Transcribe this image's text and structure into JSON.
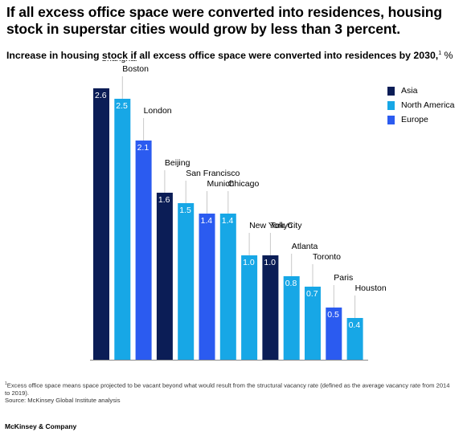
{
  "headline": "If all excess office space were converted into residences, housing stock in superstar cities would grow by less than 3 percent.",
  "subtitle": {
    "text": "Increase in housing stock if all excess office space were converted into residences by 2030,",
    "marker": "1",
    "unit": " %"
  },
  "legend": [
    {
      "label": "Asia",
      "color": "#0b1d56"
    },
    {
      "label": "North America",
      "color": "#17a7e6"
    },
    {
      "label": "Europe",
      "color": "#2b5bf0"
    }
  ],
  "chart_data": {
    "type": "bar",
    "categories": [
      "Shanghai",
      "Boston",
      "London",
      "Beijing",
      "San Francisco",
      "Munich",
      "Chicago",
      "New York City",
      "Tokyo",
      "Atlanta",
      "Toronto",
      "Paris",
      "Houston"
    ],
    "values": [
      2.6,
      2.5,
      2.1,
      1.6,
      1.5,
      1.4,
      1.4,
      1.0,
      1.0,
      0.8,
      0.7,
      0.5,
      0.4
    ],
    "value_labels": [
      "2.6",
      "2.5",
      "2.1",
      "1.6",
      "1.5",
      "1.4",
      "1.4",
      "1.0",
      "1.0",
      "0.8",
      "0.7",
      "0.5",
      "0.4"
    ],
    "regions": [
      "Asia",
      "North America",
      "Europe",
      "Asia",
      "North America",
      "Europe",
      "North America",
      "North America",
      "Asia",
      "North America",
      "North America",
      "Europe",
      "North America"
    ],
    "ylim": [
      0,
      2.6
    ],
    "grid": false,
    "legend_position": "top-right"
  },
  "footnote": {
    "marker": "1",
    "text": "Excess office space means space projected to be vacant beyond what would result from the structural vacancy rate (defined as the average vacancy rate from 2014 to 2019).",
    "source": "Source: McKinsey Global Institute analysis"
  },
  "brand": "McKinsey & Company"
}
